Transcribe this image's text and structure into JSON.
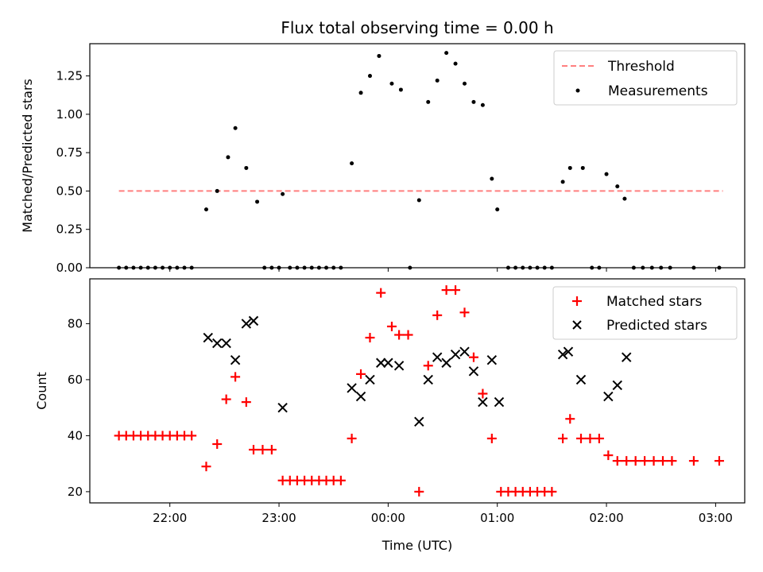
{
  "chart_data": [
    {
      "type": "scatter",
      "title": "Flux total observing time = 0.00 h",
      "xlabel": "",
      "ylabel": "Matched/Predicted stars",
      "xlim": [
        "21:16",
        "03:16"
      ],
      "ylim": [
        0,
        1.46
      ],
      "yticks": [
        "0.00",
        "0.25",
        "0.50",
        "0.75",
        "1.00",
        "1.25"
      ],
      "legend_position": "upper-right",
      "threshold": {
        "name": "Threshold",
        "value": 0.5,
        "x_start": "21:32",
        "x_end": "03:04",
        "color": "#ff7f7f"
      },
      "series": [
        {
          "name": "Measurements",
          "color": "#000000",
          "points": [
            [
              "21:32",
              0
            ],
            [
              "21:36",
              0
            ],
            [
              "21:40",
              0
            ],
            [
              "21:44",
              0
            ],
            [
              "21:48",
              0
            ],
            [
              "21:52",
              0
            ],
            [
              "21:56",
              0
            ],
            [
              "22:00",
              0
            ],
            [
              "22:04",
              0
            ],
            [
              "22:08",
              0
            ],
            [
              "22:12",
              0
            ],
            [
              "22:20",
              0.38
            ],
            [
              "22:26",
              0.5
            ],
            [
              "22:32",
              0.72
            ],
            [
              "22:36",
              0.91
            ],
            [
              "22:42",
              0.65
            ],
            [
              "22:48",
              0.43
            ],
            [
              "22:52",
              0
            ],
            [
              "22:56",
              0
            ],
            [
              "23:00",
              0
            ],
            [
              "23:02",
              0.48
            ],
            [
              "23:06",
              0
            ],
            [
              "23:10",
              0
            ],
            [
              "23:14",
              0
            ],
            [
              "23:18",
              0
            ],
            [
              "23:22",
              0
            ],
            [
              "23:26",
              0
            ],
            [
              "23:30",
              0
            ],
            [
              "23:34",
              0
            ],
            [
              "23:40",
              0.68
            ],
            [
              "23:45",
              1.14
            ],
            [
              "23:50",
              1.25
            ],
            [
              "23:55",
              1.38
            ],
            [
              "00:02",
              1.2
            ],
            [
              "00:07",
              1.16
            ],
            [
              "00:12",
              0
            ],
            [
              "00:17",
              0.44
            ],
            [
              "00:22",
              1.08
            ],
            [
              "00:27",
              1.22
            ],
            [
              "00:32",
              1.4
            ],
            [
              "00:37",
              1.33
            ],
            [
              "00:42",
              1.2
            ],
            [
              "00:47",
              1.08
            ],
            [
              "00:52",
              1.06
            ],
            [
              "00:57",
              0.58
            ],
            [
              "01:00",
              0.38
            ],
            [
              "01:06",
              0
            ],
            [
              "01:10",
              0
            ],
            [
              "01:14",
              0
            ],
            [
              "01:18",
              0
            ],
            [
              "01:22",
              0
            ],
            [
              "01:26",
              0
            ],
            [
              "01:30",
              0
            ],
            [
              "01:36",
              0.56
            ],
            [
              "01:40",
              0.65
            ],
            [
              "01:47",
              0.65
            ],
            [
              "01:52",
              0
            ],
            [
              "01:56",
              0
            ],
            [
              "02:00",
              0.61
            ],
            [
              "02:06",
              0.53
            ],
            [
              "02:10",
              0.45
            ],
            [
              "02:15",
              0
            ],
            [
              "02:20",
              0
            ],
            [
              "02:25",
              0
            ],
            [
              "02:30",
              0
            ],
            [
              "02:35",
              0
            ],
            [
              "02:48",
              0
            ],
            [
              "03:02",
              0
            ]
          ]
        }
      ]
    },
    {
      "type": "scatter",
      "title": "",
      "xlabel": "Time (UTC)",
      "ylabel": "Count",
      "xlim": [
        "21:16",
        "03:16"
      ],
      "ylim": [
        16,
        96
      ],
      "yticks": [
        "20",
        "40",
        "60",
        "80"
      ],
      "xticks": [
        "22:00",
        "23:00",
        "00:00",
        "01:00",
        "02:00",
        "03:00"
      ],
      "legend_position": "upper-right",
      "series": [
        {
          "name": "Matched stars",
          "marker": "plus",
          "color": "#ff0000",
          "points": [
            [
              "21:32",
              40
            ],
            [
              "21:36",
              40
            ],
            [
              "21:40",
              40
            ],
            [
              "21:44",
              40
            ],
            [
              "21:48",
              40
            ],
            [
              "21:52",
              40
            ],
            [
              "21:56",
              40
            ],
            [
              "22:00",
              40
            ],
            [
              "22:04",
              40
            ],
            [
              "22:08",
              40
            ],
            [
              "22:12",
              40
            ],
            [
              "22:20",
              29
            ],
            [
              "22:26",
              37
            ],
            [
              "22:31",
              53
            ],
            [
              "22:36",
              61
            ],
            [
              "22:42",
              52
            ],
            [
              "22:46",
              35
            ],
            [
              "22:51",
              35
            ],
            [
              "22:56",
              35
            ],
            [
              "23:02",
              24
            ],
            [
              "23:06",
              24
            ],
            [
              "23:10",
              24
            ],
            [
              "23:14",
              24
            ],
            [
              "23:18",
              24
            ],
            [
              "23:22",
              24
            ],
            [
              "23:26",
              24
            ],
            [
              "23:30",
              24
            ],
            [
              "23:34",
              24
            ],
            [
              "23:40",
              39
            ],
            [
              "23:45",
              62
            ],
            [
              "23:50",
              75
            ],
            [
              "23:56",
              91
            ],
            [
              "00:02",
              79
            ],
            [
              "00:06",
              76
            ],
            [
              "00:11",
              76
            ],
            [
              "00:17",
              20
            ],
            [
              "00:22",
              65
            ],
            [
              "00:27",
              83
            ],
            [
              "00:32",
              92
            ],
            [
              "00:37",
              92
            ],
            [
              "00:42",
              84
            ],
            [
              "00:47",
              68
            ],
            [
              "00:52",
              55
            ],
            [
              "00:57",
              39
            ],
            [
              "01:02",
              20
            ],
            [
              "01:06",
              20
            ],
            [
              "01:10",
              20
            ],
            [
              "01:14",
              20
            ],
            [
              "01:18",
              20
            ],
            [
              "01:22",
              20
            ],
            [
              "01:26",
              20
            ],
            [
              "01:30",
              20
            ],
            [
              "01:36",
              39
            ],
            [
              "01:40",
              46
            ],
            [
              "01:46",
              39
            ],
            [
              "01:51",
              39
            ],
            [
              "01:56",
              39
            ],
            [
              "02:01",
              33
            ],
            [
              "02:06",
              31
            ],
            [
              "02:11",
              31
            ],
            [
              "02:16",
              31
            ],
            [
              "02:21",
              31
            ],
            [
              "02:26",
              31
            ],
            [
              "02:31",
              31
            ],
            [
              "02:36",
              31
            ],
            [
              "02:48",
              31
            ],
            [
              "03:02",
              31
            ]
          ]
        },
        {
          "name": "Predicted stars",
          "marker": "x",
          "color": "#000000",
          "points": [
            [
              "22:21",
              75
            ],
            [
              "22:26",
              73
            ],
            [
              "22:31",
              73
            ],
            [
              "22:36",
              67
            ],
            [
              "22:42",
              80
            ],
            [
              "22:46",
              81
            ],
            [
              "23:02",
              50
            ],
            [
              "23:40",
              57
            ],
            [
              "23:45",
              54
            ],
            [
              "23:50",
              60
            ],
            [
              "23:56",
              66
            ],
            [
              "00:00",
              66
            ],
            [
              "00:06",
              65
            ],
            [
              "00:17",
              45
            ],
            [
              "00:22",
              60
            ],
            [
              "00:27",
              68
            ],
            [
              "00:32",
              66
            ],
            [
              "00:37",
              69
            ],
            [
              "00:42",
              70
            ],
            [
              "00:47",
              63
            ],
            [
              "00:52",
              52
            ],
            [
              "00:57",
              67
            ],
            [
              "01:01",
              52
            ],
            [
              "01:36",
              69
            ],
            [
              "01:39",
              70
            ],
            [
              "01:46",
              60
            ],
            [
              "02:01",
              54
            ],
            [
              "02:06",
              58
            ],
            [
              "02:11",
              68
            ]
          ]
        }
      ]
    }
  ]
}
